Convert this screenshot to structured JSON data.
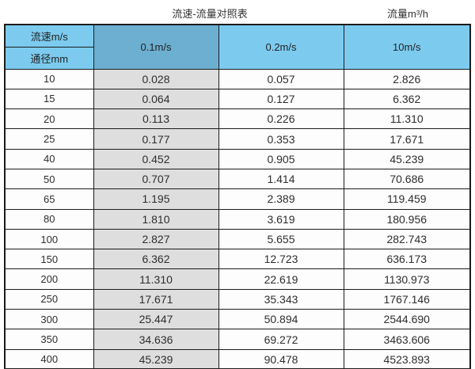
{
  "page": {
    "title": "流速-流量对照表",
    "unit_label": "流量m³/h"
  },
  "table": {
    "corner_top_label": "流速m/s",
    "corner_bottom_label": "通径mm",
    "columns": [
      "0.1m/s",
      "0.2m/s",
      "10m/s"
    ],
    "rows": [
      {
        "diameter": "10",
        "values": [
          "0.028",
          "0.057",
          "2.826"
        ]
      },
      {
        "diameter": "15",
        "values": [
          "0.064",
          "0.127",
          "6.362"
        ]
      },
      {
        "diameter": "20",
        "values": [
          "0.113",
          "0.226",
          "11.310"
        ]
      },
      {
        "diameter": "25",
        "values": [
          "0.177",
          "0.353",
          "17.671"
        ]
      },
      {
        "diameter": "40",
        "values": [
          "0.452",
          "0.905",
          "45.239"
        ]
      },
      {
        "diameter": "50",
        "values": [
          "0.707",
          "1.414",
          "70.686"
        ]
      },
      {
        "diameter": "65",
        "values": [
          "1.195",
          "2.389",
          "119.459"
        ]
      },
      {
        "diameter": "80",
        "values": [
          "1.810",
          "3.619",
          "180.956"
        ]
      },
      {
        "diameter": "100",
        "values": [
          "2.827",
          "5.655",
          "282.743"
        ]
      },
      {
        "diameter": "150",
        "values": [
          "6.362",
          "12.723",
          "636.173"
        ]
      },
      {
        "diameter": "200",
        "values": [
          "11.310",
          "22.619",
          "1130.973"
        ]
      },
      {
        "diameter": "250",
        "values": [
          "17.671",
          "35.343",
          "1767.146"
        ]
      },
      {
        "diameter": "300",
        "values": [
          "25.447",
          "50.894",
          "2544.690"
        ]
      },
      {
        "diameter": "350",
        "values": [
          "34.636",
          "69.272",
          "3463.606"
        ]
      },
      {
        "diameter": "400",
        "values": [
          "45.239",
          "90.478",
          "4523.893"
        ]
      }
    ]
  },
  "colors": {
    "header_light_blue": "#7ccbef",
    "header_medium_blue": "#6cafd0",
    "first_data_column_grey": "#dedede",
    "border": "#1c1c1c"
  }
}
